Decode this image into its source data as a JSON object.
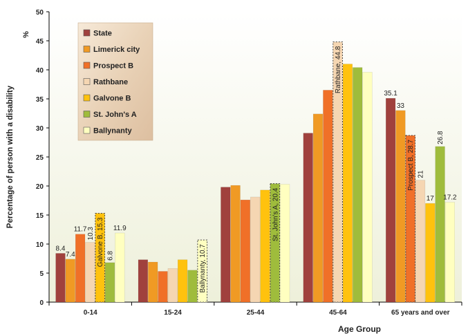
{
  "chart_data": {
    "type": "bar",
    "title": "",
    "xlabel": "Age Group",
    "ylabel": "Percentage of person with a disability",
    "ylabel_unit": "%",
    "ylim": [
      0,
      50
    ],
    "yticks": [
      "0",
      "5",
      "10",
      "15",
      "20",
      "25",
      "30",
      "35",
      "40",
      "45",
      "50"
    ],
    "grid": false,
    "legend": "top-left",
    "categories": [
      "0-14",
      "15-24",
      "25-44",
      "45-64",
      "65 years and over"
    ],
    "series": [
      {
        "name": "State",
        "color": "#A0413D",
        "values": [
          8.4,
          7.3,
          19.8,
          29.1,
          35.1
        ],
        "labels": [
          "8.4",
          "",
          "",
          "",
          "35.1"
        ],
        "label_rotated": false
      },
      {
        "name": "Limerick city",
        "color": "#F09A24",
        "values": [
          7.4,
          6.9,
          20.1,
          32.4,
          33
        ],
        "labels": [
          "7.4",
          "",
          "",
          "",
          "33"
        ],
        "label_rotated": false
      },
      {
        "name": "Prospect B",
        "color": "#F07028",
        "values": [
          11.7,
          5.3,
          17.6,
          36.5,
          28.7
        ],
        "labels": [
          "11.7",
          "",
          "",
          "",
          "Prospect B, 28.7"
        ],
        "label_rotated": [
          false,
          false,
          false,
          false,
          true
        ],
        "highlight_index": 4
      },
      {
        "name": "Rathbane",
        "color": "#F5D6B2",
        "values": [
          10.3,
          5.8,
          18.1,
          44.8,
          21
        ],
        "labels": [
          "10.3",
          "",
          "",
          "Rathbane, 44.8",
          "21"
        ],
        "label_rotated": [
          true,
          false,
          false,
          true,
          true
        ],
        "highlight_index": 3
      },
      {
        "name": "Galvone B",
        "color": "#FFC20E",
        "values": [
          15.3,
          7.3,
          19.3,
          41,
          17
        ],
        "labels": [
          "Galvone B, 15.3",
          "",
          "",
          "",
          "17"
        ],
        "label_rotated": [
          true,
          false,
          false,
          false,
          false
        ],
        "highlight_index": 0
      },
      {
        "name": "St. John's A",
        "color": "#9FBC3C",
        "values": [
          6.8,
          5.5,
          20.4,
          40.4,
          26.8
        ],
        "labels": [
          "6.8",
          "",
          "St. John's A, 20.4",
          "",
          "26.8"
        ],
        "label_rotated": [
          true,
          false,
          true,
          false,
          true
        ],
        "highlight_index": 2
      },
      {
        "name": "Ballynanty",
        "color": "#FFFFC0",
        "values": [
          11.9,
          10.7,
          20.3,
          39.6,
          17.2
        ],
        "labels": [
          "11.9",
          "Ballynanty, 10.7",
          "",
          "",
          "17.2"
        ],
        "label_rotated": [
          false,
          true,
          false,
          false,
          false
        ],
        "highlight_index": 1
      }
    ]
  }
}
